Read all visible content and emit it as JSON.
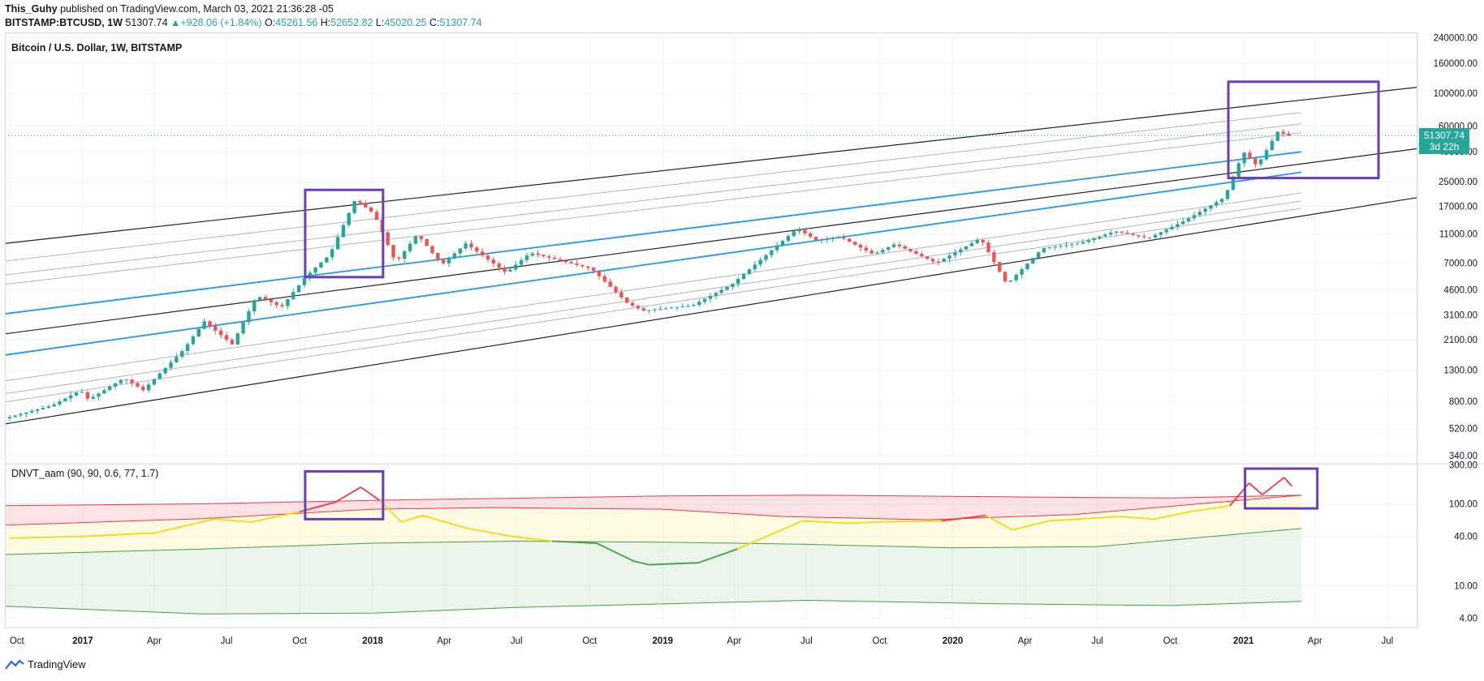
{
  "header": {
    "author": "This_Guhy",
    "published": "published on TradingView.com, March 03, 2021 21:36:28 -05",
    "symbol": "BITSTAMP:BTCUSD, 1W",
    "last": "51307.74",
    "change": "▲+928.06 (+1.84%)",
    "o_label": "O:",
    "o": "45261.56",
    "h_label": "H:",
    "h": "52652.82",
    "l_label": "L:",
    "l": "45020.25",
    "c_label": "C:",
    "c": "51307.74"
  },
  "main_legend": "Bitcoin / U.S. Dollar, 1W, BITSTAMP",
  "indicator_legend": "DNVT_aam (90, 90, 0.6, 77, 1.7)",
  "price_tag": {
    "price": "51307.74",
    "countdown": "3d 22h"
  },
  "footer": {
    "brand": "TradingView"
  },
  "colors": {
    "up": "#26a69a",
    "down": "#ef5350",
    "blue": "#2196f3",
    "box": "#6a3fb5",
    "red_band": "#f23645",
    "yellow": "#ffeb3b",
    "green": "#43a047"
  },
  "chart_data": [
    {
      "type": "candlestick",
      "title": "Bitcoin / U.S. Dollar, 1W, BITSTAMP",
      "yscale": "log",
      "ylim": [
        300,
        260000
      ],
      "x_range": [
        "2016-09-25",
        "2021-08-08"
      ],
      "x_ticks": [
        "Oct",
        "2017",
        "Apr",
        "Jul",
        "Oct",
        "2018",
        "Apr",
        "Jul",
        "Oct",
        "2019",
        "Apr",
        "Jul",
        "Oct",
        "2020",
        "Apr",
        "Jul",
        "Oct",
        "2021",
        "Apr",
        "Jul"
      ],
      "y_ticks": [
        "240000.00",
        "160000.00",
        "100000.00",
        "60000.00",
        "40000.00",
        "25000.00",
        "17000.00",
        "11000.00",
        "7000.00",
        "4600.00",
        "3100.00",
        "2100.00",
        "1300.00",
        "800.00",
        "520.00",
        "340.00"
      ],
      "price_path": [
        [
          "2016-10-01",
          610
        ],
        [
          "2016-12-01",
          750
        ],
        [
          "2017-01-05",
          950
        ],
        [
          "2017-01-15",
          820
        ],
        [
          "2017-03-01",
          1150
        ],
        [
          "2017-03-25",
          950
        ],
        [
          "2017-05-15",
          1800
        ],
        [
          "2017-06-10",
          2800
        ],
        [
          "2017-07-15",
          1950
        ],
        [
          "2017-08-15",
          4200
        ],
        [
          "2017-09-15",
          3500
        ],
        [
          "2017-10-15",
          5600
        ],
        [
          "2017-11-15",
          8000
        ],
        [
          "2017-12-17",
          19000
        ],
        [
          "2018-01-10",
          15000
        ],
        [
          "2018-02-06",
          7000
        ],
        [
          "2018-03-05",
          11000
        ],
        [
          "2018-04-05",
          6800
        ],
        [
          "2018-05-05",
          9500
        ],
        [
          "2018-06-25",
          6000
        ],
        [
          "2018-07-25",
          8200
        ],
        [
          "2018-10-10",
          6400
        ],
        [
          "2018-11-25",
          3700
        ],
        [
          "2018-12-15",
          3300
        ],
        [
          "2019-02-15",
          3600
        ],
        [
          "2019-04-05",
          5000
        ],
        [
          "2019-06-26",
          12000
        ],
        [
          "2019-07-20",
          10000
        ],
        [
          "2019-08-20",
          10500
        ],
        [
          "2019-09-30",
          8000
        ],
        [
          "2019-10-27",
          9400
        ],
        [
          "2019-12-18",
          7000
        ],
        [
          "2020-02-12",
          10300
        ],
        [
          "2020-03-16",
          5000
        ],
        [
          "2020-04-30",
          8800
        ],
        [
          "2020-06-15",
          9500
        ],
        [
          "2020-07-30",
          11500
        ],
        [
          "2020-09-10",
          10300
        ],
        [
          "2020-10-25",
          13500
        ],
        [
          "2020-12-15",
          19500
        ],
        [
          "2021-01-08",
          40000
        ],
        [
          "2021-01-25",
          32000
        ],
        [
          "2021-02-21",
          56000
        ],
        [
          "2021-03-03",
          51307.74
        ]
      ],
      "channel_lines": [
        {
          "style": "black",
          "start": [
            "2016-09-25",
            9500
          ],
          "end": [
            "2021-08-08",
            110000
          ]
        },
        {
          "style": "gray",
          "start": [
            "2016-09-25",
            7200
          ],
          "end": [
            "2021-03-15",
            74000
          ]
        },
        {
          "style": "gray",
          "start": [
            "2016-09-25",
            5800
          ],
          "end": [
            "2021-03-15",
            62000
          ]
        },
        {
          "style": "gray",
          "start": [
            "2016-09-25",
            5000
          ],
          "end": [
            "2021-03-15",
            54000
          ]
        },
        {
          "style": "blue",
          "start": [
            "2016-09-25",
            3150
          ],
          "end": [
            "2021-03-15",
            40000
          ]
        },
        {
          "style": "black",
          "start": [
            "2016-09-25",
            2300
          ],
          "end": [
            "2021-08-08",
            42000
          ]
        },
        {
          "style": "blue",
          "start": [
            "2016-09-25",
            1650
          ],
          "end": [
            "2021-03-15",
            29000
          ]
        },
        {
          "style": "gray",
          "start": [
            "2016-09-25",
            1100
          ],
          "end": [
            "2021-03-15",
            21000
          ]
        },
        {
          "style": "gray",
          "start": [
            "2016-09-25",
            900
          ],
          "end": [
            "2021-03-15",
            18500
          ]
        },
        {
          "style": "gray",
          "start": [
            "2016-09-25",
            790
          ],
          "end": [
            "2021-03-15",
            16500
          ]
        },
        {
          "style": "black",
          "start": [
            "2016-09-25",
            560
          ],
          "end": [
            "2021-08-08",
            19500
          ]
        }
      ],
      "highlight_boxes": [
        {
          "from": [
            "2017-10-08",
            22000
          ],
          "to": [
            "2018-01-14",
            5600
          ]
        },
        {
          "from": [
            "2020-12-13",
            120000
          ],
          "to": [
            "2021-06-20",
            26500
          ]
        }
      ],
      "last_price": 51307.74
    },
    {
      "type": "line",
      "title": "DNVT_aam (90, 90, 0.6, 77, 1.7)",
      "yscale": "log",
      "ylim": [
        3,
        310
      ],
      "y_ticks": [
        "300.00",
        "100.00",
        "40.00",
        "10.00",
        "4.00"
      ],
      "series": [
        {
          "role": "red_upper",
          "points": [
            [
              "2016-09-25",
              95
            ],
            [
              "2017-06-01",
              100
            ],
            [
              "2018-02-01",
              112
            ],
            [
              "2019-01-01",
              125
            ],
            [
              "2019-07-01",
              128
            ],
            [
              "2020-03-01",
              122
            ],
            [
              "2020-10-01",
              118
            ],
            [
              "2021-03-15",
              128
            ]
          ]
        },
        {
          "role": "red_lower",
          "points": [
            [
              "2016-09-25",
              55
            ],
            [
              "2017-06-01",
              66
            ],
            [
              "2018-01-01",
              86
            ],
            [
              "2018-06-01",
              90
            ],
            [
              "2019-01-01",
              86
            ],
            [
              "2019-06-01",
              70
            ],
            [
              "2019-12-01",
              64
            ],
            [
              "2020-06-01",
              74
            ],
            [
              "2021-03-15",
              128
            ]
          ]
        },
        {
          "role": "green_upper",
          "points": [
            [
              "2016-09-25",
              24
            ],
            [
              "2017-06-01",
              28
            ],
            [
              "2018-01-01",
              33
            ],
            [
              "2018-07-01",
              35
            ],
            [
              "2019-01-01",
              34
            ],
            [
              "2019-07-01",
              32
            ],
            [
              "2020-01-01",
              29
            ],
            [
              "2020-07-01",
              30
            ],
            [
              "2021-03-15",
              50
            ]
          ]
        },
        {
          "role": "green_lower",
          "points": [
            [
              "2016-09-25",
              5.6
            ],
            [
              "2017-06-01",
              4.5
            ],
            [
              "2018-01-01",
              4.6
            ],
            [
              "2018-07-01",
              5.4
            ],
            [
              "2019-07-01",
              6.6
            ],
            [
              "2020-03-01",
              6.0
            ],
            [
              "2020-10-01",
              5.7
            ],
            [
              "2021-03-15",
              6.4
            ]
          ]
        },
        {
          "role": "oscillator",
          "points": [
            [
              "2016-10-01",
              38
            ],
            [
              "2017-01-01",
              40
            ],
            [
              "2017-04-01",
              44
            ],
            [
              "2017-06-15",
              65
            ],
            [
              "2017-08-01",
              60
            ],
            [
              "2017-10-01",
              80
            ],
            [
              "2017-11-15",
              105
            ],
            [
              "2017-12-17",
              160
            ],
            [
              "2018-01-10",
              110
            ],
            [
              "2018-02-06",
              60
            ],
            [
              "2018-03-05",
              72
            ],
            [
              "2018-05-01",
              50
            ],
            [
              "2018-06-25",
              40
            ],
            [
              "2018-08-15",
              35
            ],
            [
              "2018-10-10",
              33
            ],
            [
              "2018-11-25",
              20
            ],
            [
              "2018-12-15",
              18
            ],
            [
              "2019-02-15",
              19
            ],
            [
              "2019-04-05",
              28
            ],
            [
              "2019-06-26",
              62
            ],
            [
              "2019-08-20",
              58
            ],
            [
              "2019-09-30",
              60
            ],
            [
              "2019-12-18",
              62
            ],
            [
              "2020-02-12",
              72
            ],
            [
              "2020-03-16",
              48
            ],
            [
              "2020-05-01",
              62
            ],
            [
              "2020-07-30",
              70
            ],
            [
              "2020-09-10",
              65
            ],
            [
              "2020-10-25",
              80
            ],
            [
              "2020-12-15",
              95
            ],
            [
              "2021-01-08",
              180
            ],
            [
              "2021-01-25",
              130
            ],
            [
              "2021-02-21",
              210
            ],
            [
              "2021-03-03",
              165
            ]
          ]
        }
      ],
      "highlight_boxes": [
        {
          "from": [
            "2017-10-08",
            250
          ],
          "to": [
            "2018-01-14",
            65
          ]
        },
        {
          "from": [
            "2021-01-03",
            270
          ],
          "to": [
            "2021-04-04",
            88
          ]
        }
      ]
    }
  ]
}
